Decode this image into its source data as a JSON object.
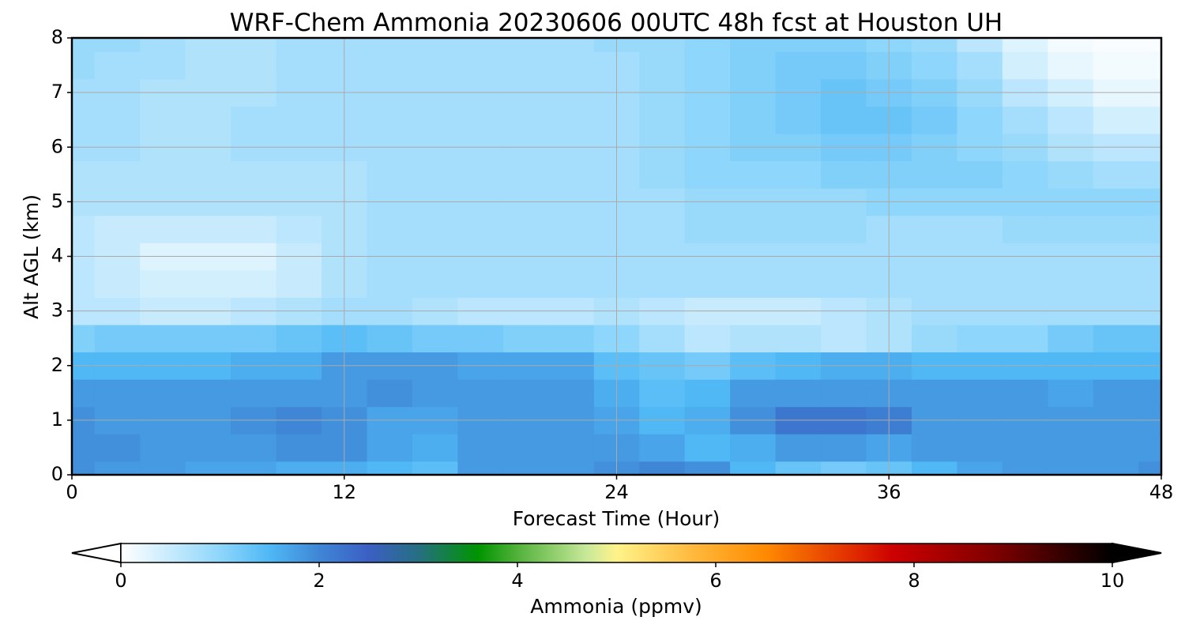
{
  "chart_data": {
    "type": "heatmap",
    "title": "WRF-Chem Ammonia  20230606 00UTC 48h fcst at Houston UH",
    "xlabel": "Forecast Time (Hour)",
    "ylabel": "Alt AGL (km)",
    "xlim": [
      0,
      48
    ],
    "ylim": [
      0,
      8
    ],
    "x_ticks": [
      "0",
      "12",
      "24",
      "36",
      "48"
    ],
    "y_ticks": [
      "0",
      "1",
      "2",
      "3",
      "4",
      "5",
      "6",
      "7",
      "8"
    ],
    "grid": true,
    "x": [
      0,
      2,
      4,
      6,
      8,
      10,
      12,
      14,
      16,
      18,
      20,
      22,
      24,
      26,
      28,
      30,
      32,
      34,
      36,
      38,
      40,
      42,
      44,
      46,
      48
    ],
    "y": [
      0,
      0.5,
      1,
      1.5,
      2,
      2.5,
      3,
      3.5,
      4,
      4.5,
      5,
      5.5,
      6,
      6.5,
      7,
      7.5,
      8
    ],
    "z": [
      [
        1.9,
        1.8,
        1.8,
        1.7,
        1.7,
        1.6,
        1.6,
        1.5,
        1.4,
        1.8,
        1.8,
        1.8,
        1.9,
        2.0,
        1.9,
        1.5,
        1.3,
        1.2,
        1.3,
        1.5,
        1.7,
        1.8,
        1.8,
        1.8,
        1.9
      ],
      [
        1.9,
        1.9,
        1.8,
        1.8,
        1.8,
        1.9,
        1.9,
        1.7,
        1.6,
        1.8,
        1.8,
        1.8,
        1.8,
        1.7,
        1.5,
        1.6,
        1.8,
        1.8,
        1.7,
        1.8,
        1.8,
        1.8,
        1.8,
        1.8,
        1.8
      ],
      [
        1.9,
        1.8,
        1.8,
        1.8,
        1.9,
        2.0,
        1.9,
        1.7,
        1.7,
        1.8,
        1.8,
        1.8,
        1.7,
        1.5,
        1.6,
        1.9,
        2.2,
        2.2,
        2.1,
        1.8,
        1.8,
        1.8,
        1.8,
        1.8,
        1.8
      ],
      [
        1.8,
        1.8,
        1.8,
        1.8,
        1.8,
        1.8,
        1.8,
        1.9,
        1.8,
        1.8,
        1.8,
        1.8,
        1.6,
        1.4,
        1.5,
        1.8,
        1.8,
        1.8,
        1.8,
        1.8,
        1.8,
        1.8,
        1.7,
        1.8,
        1.8
      ],
      [
        1.5,
        1.5,
        1.5,
        1.5,
        1.6,
        1.6,
        1.8,
        1.8,
        1.8,
        1.7,
        1.7,
        1.7,
        1.4,
        1.3,
        1.2,
        1.4,
        1.5,
        1.6,
        1.6,
        1.5,
        1.5,
        1.5,
        1.5,
        1.5,
        1.5
      ],
      [
        1.1,
        1.2,
        1.2,
        1.2,
        1.2,
        1.3,
        1.4,
        1.3,
        1.2,
        1.2,
        1.1,
        1.1,
        1.0,
        0.8,
        0.6,
        0.7,
        0.7,
        0.6,
        0.7,
        0.9,
        1.0,
        1.0,
        1.2,
        1.3,
        1.3
      ],
      [
        0.6,
        0.6,
        0.5,
        0.5,
        0.6,
        0.7,
        0.8,
        0.8,
        0.7,
        0.6,
        0.6,
        0.6,
        0.7,
        0.6,
        0.5,
        0.5,
        0.5,
        0.6,
        0.7,
        0.8,
        0.8,
        0.8,
        0.8,
        0.8,
        0.8
      ],
      [
        0.6,
        0.5,
        0.4,
        0.4,
        0.4,
        0.5,
        0.7,
        0.8,
        0.8,
        0.8,
        0.8,
        0.8,
        0.8,
        0.8,
        0.8,
        0.8,
        0.8,
        0.8,
        0.8,
        0.8,
        0.8,
        0.8,
        0.8,
        0.8,
        0.8
      ],
      [
        0.6,
        0.5,
        0.3,
        0.3,
        0.3,
        0.5,
        0.7,
        0.8,
        0.8,
        0.8,
        0.8,
        0.8,
        0.8,
        0.8,
        0.8,
        0.8,
        0.8,
        0.8,
        0.8,
        0.8,
        0.8,
        0.8,
        0.8,
        0.8,
        0.8
      ],
      [
        0.6,
        0.5,
        0.5,
        0.5,
        0.5,
        0.6,
        0.7,
        0.8,
        0.8,
        0.8,
        0.8,
        0.8,
        0.8,
        0.8,
        0.9,
        0.9,
        0.9,
        0.9,
        0.8,
        0.8,
        0.8,
        0.9,
        0.9,
        0.9,
        0.9
      ],
      [
        0.7,
        0.7,
        0.7,
        0.7,
        0.7,
        0.7,
        0.7,
        0.8,
        0.8,
        0.8,
        0.8,
        0.8,
        0.8,
        0.8,
        0.9,
        0.9,
        0.9,
        0.9,
        1.0,
        1.0,
        1.0,
        1.0,
        1.0,
        1.0,
        1.0
      ],
      [
        0.7,
        0.7,
        0.7,
        0.7,
        0.7,
        0.7,
        0.7,
        0.8,
        0.8,
        0.8,
        0.8,
        0.8,
        0.8,
        0.9,
        1.0,
        1.0,
        1.0,
        1.1,
        1.1,
        1.1,
        1.1,
        1.0,
        0.9,
        0.8,
        0.8
      ],
      [
        0.8,
        0.8,
        0.7,
        0.7,
        0.8,
        0.8,
        0.8,
        0.8,
        0.8,
        0.8,
        0.8,
        0.8,
        0.8,
        0.9,
        1.0,
        1.1,
        1.1,
        1.2,
        1.2,
        1.1,
        1.0,
        0.9,
        0.7,
        0.6,
        0.6
      ],
      [
        0.8,
        0.8,
        0.7,
        0.7,
        0.8,
        0.8,
        0.8,
        0.8,
        0.8,
        0.8,
        0.8,
        0.8,
        0.8,
        0.9,
        1.0,
        1.1,
        1.2,
        1.3,
        1.3,
        1.2,
        1.0,
        0.8,
        0.6,
        0.4,
        0.4
      ],
      [
        0.8,
        0.8,
        0.7,
        0.7,
        0.7,
        0.8,
        0.8,
        0.8,
        0.8,
        0.8,
        0.8,
        0.8,
        0.8,
        0.9,
        1.0,
        1.1,
        1.2,
        1.3,
        1.2,
        1.1,
        0.9,
        0.6,
        0.4,
        0.2,
        0.2
      ],
      [
        0.9,
        0.8,
        0.8,
        0.7,
        0.7,
        0.8,
        0.8,
        0.8,
        0.8,
        0.8,
        0.8,
        0.8,
        0.8,
        0.9,
        1.0,
        1.1,
        1.2,
        1.2,
        1.1,
        1.0,
        0.8,
        0.4,
        0.2,
        0.1,
        0.1
      ],
      [
        0.9,
        0.9,
        0.8,
        0.7,
        0.7,
        0.8,
        0.8,
        0.8,
        0.8,
        0.8,
        0.8,
        0.8,
        0.9,
        0.9,
        1.0,
        1.1,
        1.1,
        1.1,
        1.0,
        0.9,
        0.6,
        0.3,
        0.1,
        0.05,
        0.05
      ]
    ],
    "colorbar": {
      "label": "Ammonia  (ppmv)",
      "min": 0,
      "max": 10,
      "ticks": [
        "0",
        "2",
        "4",
        "6",
        "8",
        "10"
      ],
      "extend": "both",
      "stops": [
        [
          0,
          "#ffffff"
        ],
        [
          1,
          "#8ed6fb"
        ],
        [
          1.5,
          "#4fb8f5"
        ],
        [
          2,
          "#3f86d6"
        ],
        [
          2.5,
          "#3b5fc4"
        ],
        [
          3,
          "#266f82"
        ],
        [
          3.6,
          "#009400"
        ],
        [
          4.0,
          "#52b23b"
        ],
        [
          4.7,
          "#c8e89a"
        ],
        [
          5.0,
          "#fff38a"
        ],
        [
          5.8,
          "#ffb73a"
        ],
        [
          6.5,
          "#ff8a00"
        ],
        [
          7.4,
          "#e02a00"
        ],
        [
          7.8,
          "#cc0000"
        ],
        [
          8.8,
          "#800000"
        ],
        [
          9.6,
          "#2a0000"
        ],
        [
          10,
          "#000000"
        ]
      ]
    }
  }
}
